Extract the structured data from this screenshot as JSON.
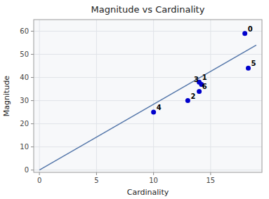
{
  "chart_data": {
    "type": "scatter",
    "title": "Magnitude vs Cardinality",
    "x_label": "Cardinality",
    "y_label": "Magnitude",
    "series": [
      {
        "type": "scatter",
        "color": "#0000cc",
        "x": [
          18.0,
          14.0,
          13.0,
          14.2,
          10.0,
          18.3,
          14.0
        ],
        "values": [
          59,
          38,
          30,
          37,
          25,
          44,
          34
        ],
        "annotations": [
          "0",
          "1",
          "2",
          "3",
          "4",
          "5",
          "6"
        ]
      },
      {
        "type": "line",
        "color": "#5577aa",
        "x": [
          0,
          19
        ],
        "values": [
          0,
          54
        ]
      }
    ],
    "xlim": [
      -0.5,
      19.5
    ],
    "ylim": [
      -1,
      65
    ],
    "xticks": [
      0,
      5,
      10,
      15
    ],
    "yticks": [
      0,
      10,
      20,
      30,
      40,
      50,
      60
    ],
    "grid": true
  }
}
